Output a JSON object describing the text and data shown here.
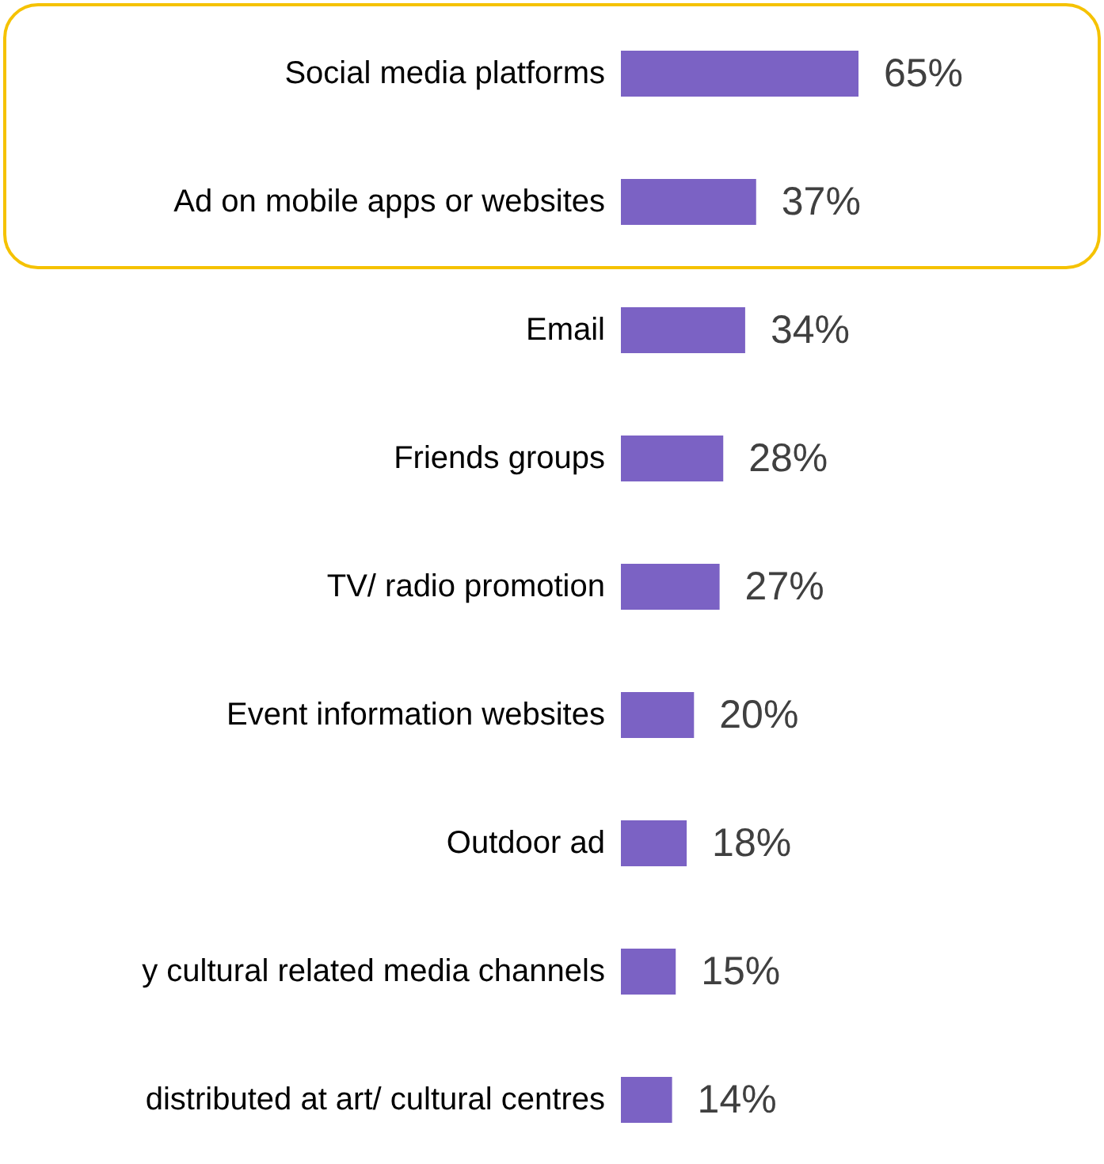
{
  "chart_data": {
    "type": "bar",
    "orientation": "horizontal",
    "categories": [
      "Social media platforms",
      "Ad on mobile apps or websites",
      "Email",
      "Friends groups",
      "TV/ radio promotion",
      "Event information websites",
      "Outdoor ad",
      "y cultural related media channels",
      "distributed at art/ cultural centres"
    ],
    "values": [
      65,
      37,
      34,
      28,
      27,
      20,
      18,
      15,
      14
    ],
    "value_labels": [
      "65%",
      "37%",
      "34%",
      "28%",
      "27%",
      "20%",
      "18%",
      "15%",
      "14%"
    ],
    "color": "#7b62c4"
  }
}
